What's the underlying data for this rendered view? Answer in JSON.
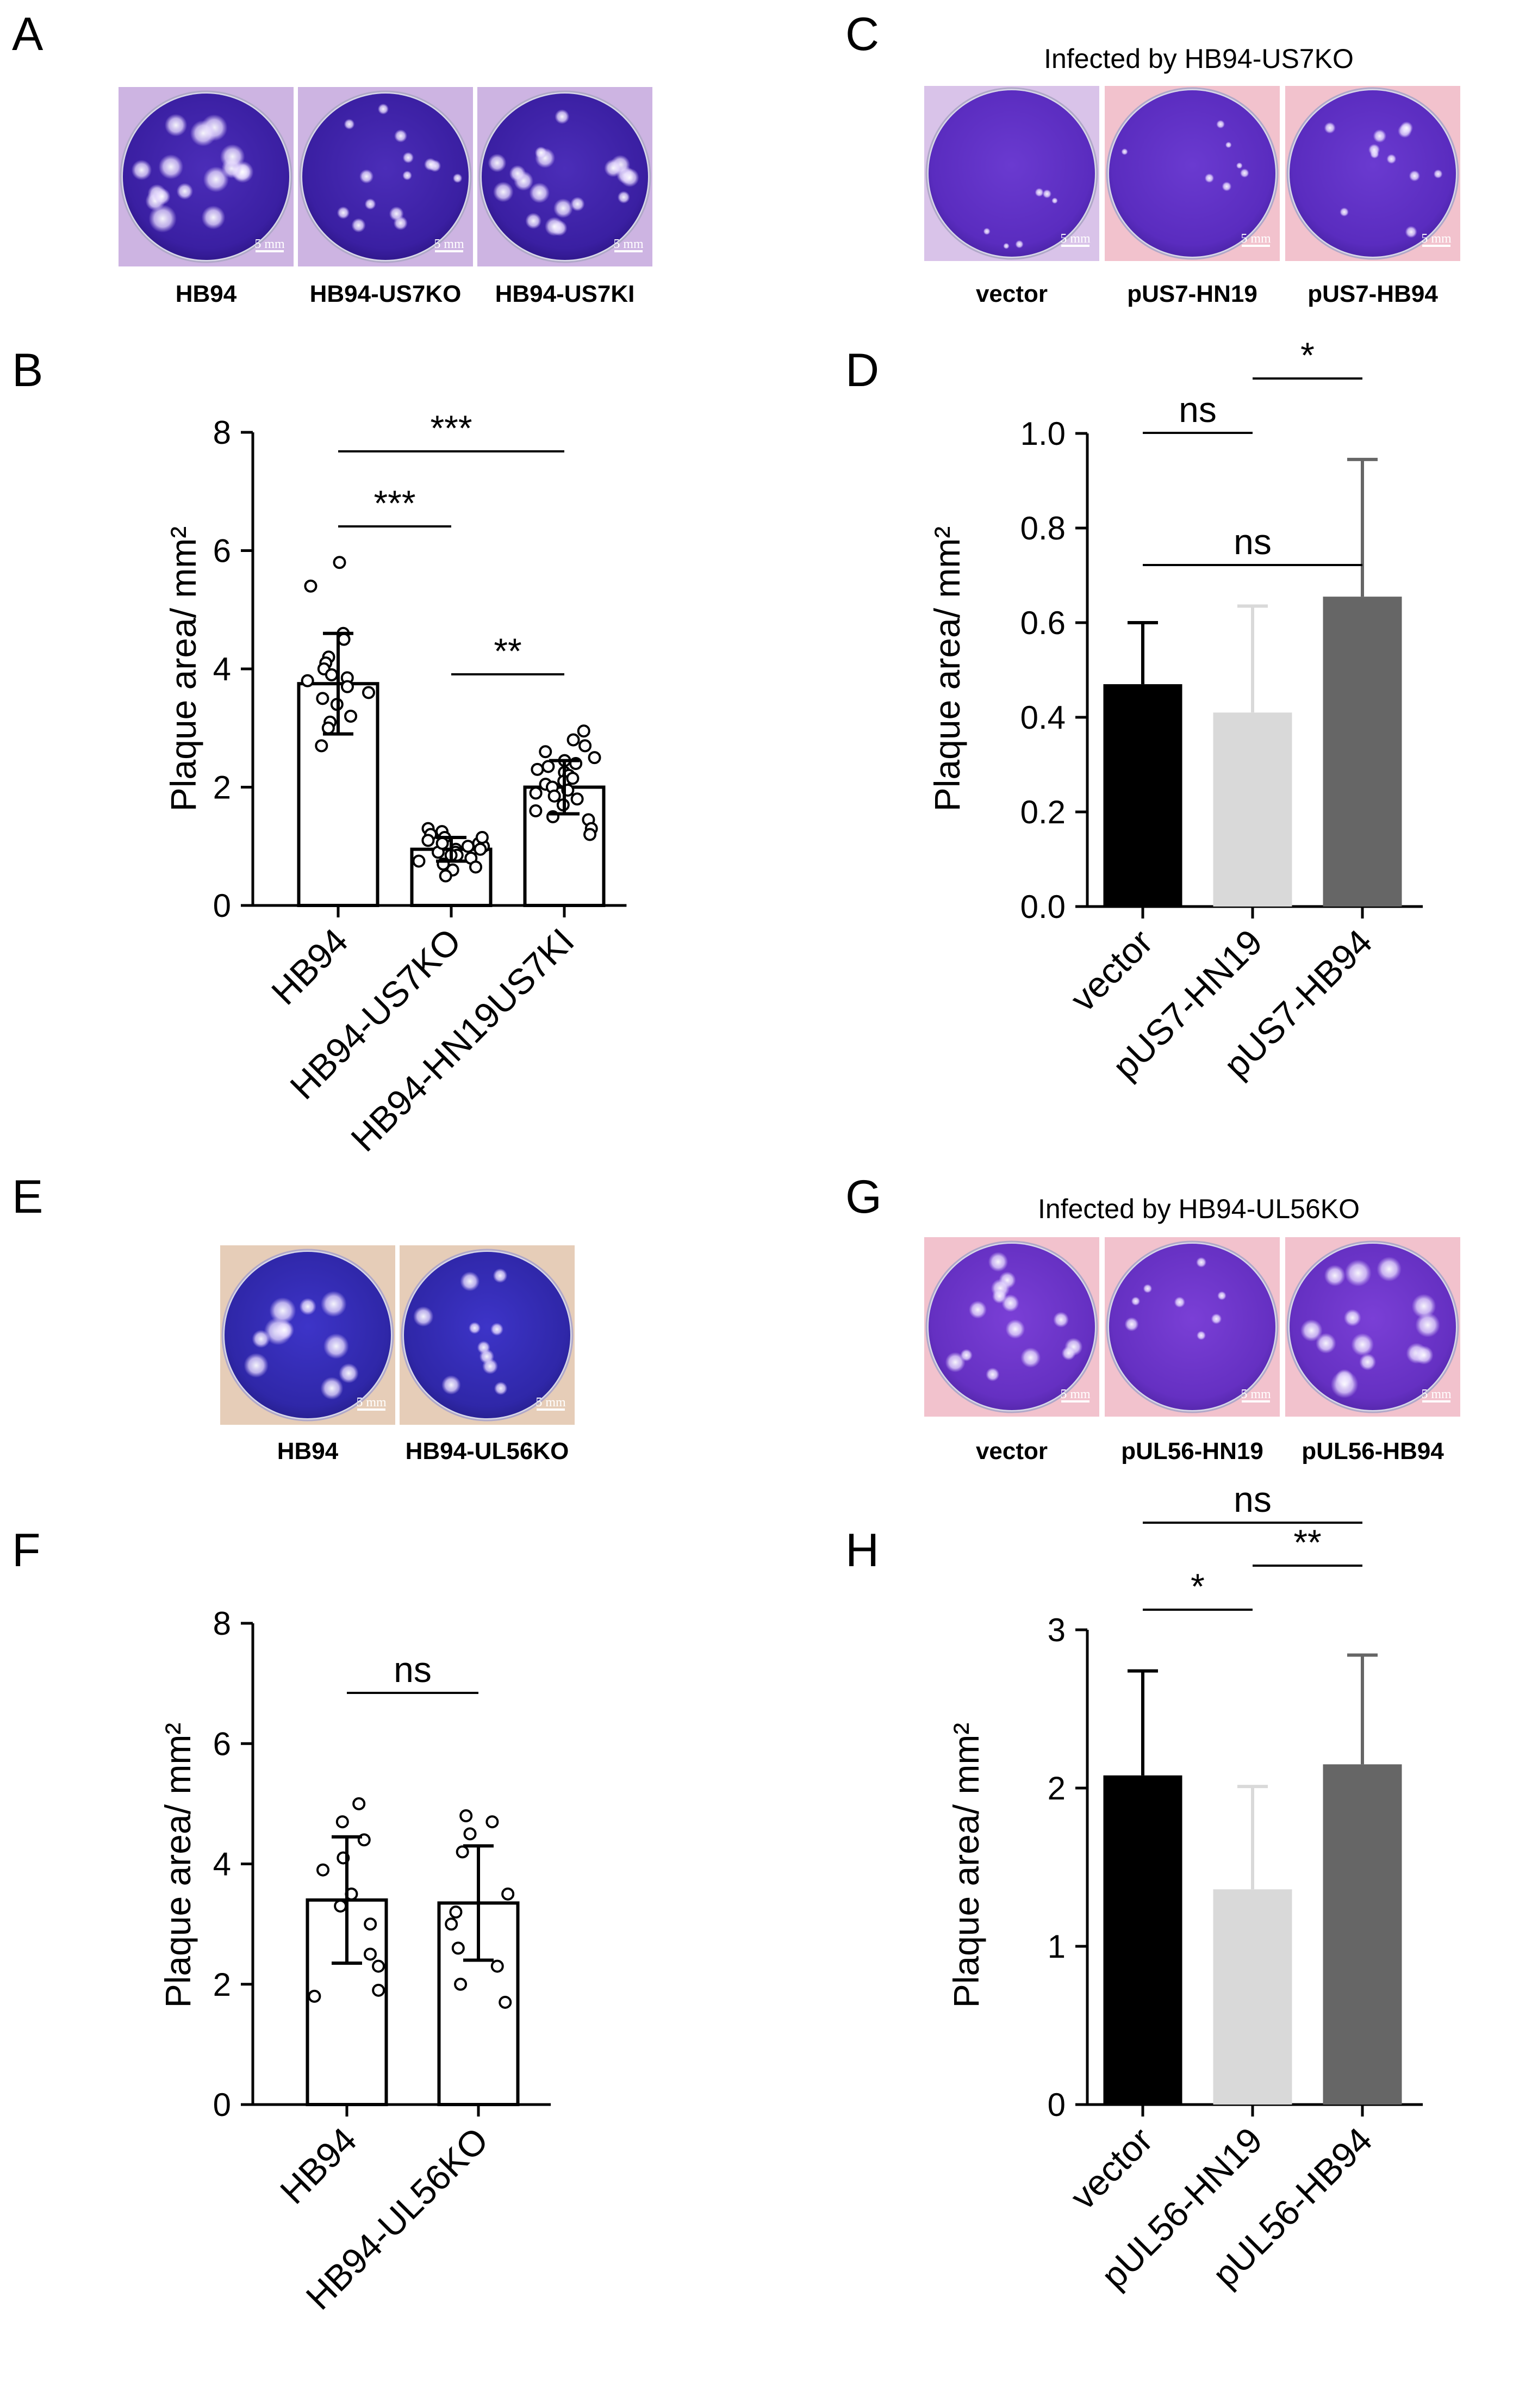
{
  "panels": {
    "A": {
      "letter": "A",
      "header": "",
      "scale_label": "5 mm",
      "dishes": [
        {
          "caption": "HB94",
          "plaque_count": 16,
          "plaque_size": "large",
          "bg": "#cdb4e2"
        },
        {
          "caption": "HB94-US7KO",
          "plaque_count": 14,
          "plaque_size": "small",
          "bg": "#cdb4e2"
        },
        {
          "caption": "HB94-US7KI",
          "plaque_count": 18,
          "plaque_size": "medium",
          "bg": "#cdb4e2"
        }
      ]
    },
    "C": {
      "letter": "C",
      "header": "Infected by HB94-US7KO",
      "scale_label": "5 mm",
      "dishes": [
        {
          "caption": "vector",
          "plaque_count": 6,
          "plaque_size": "tiny",
          "bg": "#d9c3e9"
        },
        {
          "caption": "pUS7-HN19",
          "plaque_count": 7,
          "plaque_size": "tiny",
          "bg": "#f2c2cd"
        },
        {
          "caption": "pUS7-HB94",
          "plaque_count": 11,
          "plaque_size": "small",
          "bg": "#f2c2cd"
        }
      ]
    },
    "E": {
      "letter": "E",
      "header": "",
      "scale_label": "5 mm",
      "dishes": [
        {
          "caption": "HB94",
          "plaque_count": 10,
          "plaque_size": "large",
          "bg": "#e6cdb8"
        },
        {
          "caption": "HB94-UL56KO",
          "plaque_count": 10,
          "plaque_size": "medium",
          "bg": "#e6cdb8"
        }
      ]
    },
    "G": {
      "letter": "G",
      "header": "Infected by HB94-UL56KO",
      "scale_label": "5 mm",
      "dishes": [
        {
          "caption": "vector",
          "plaque_count": 14,
          "plaque_size": "medium",
          "bg": "#f2c2cd"
        },
        {
          "caption": "pUL56-HN19",
          "plaque_count": 8,
          "plaque_size": "small",
          "bg": "#f2c2cd"
        },
        {
          "caption": "pUL56-HB94",
          "plaque_count": 14,
          "plaque_size": "large",
          "bg": "#f2c2cd"
        }
      ]
    }
  },
  "chart_data": [
    {
      "panel": "B",
      "type": "bar",
      "style": "scatter-bar",
      "ylabel": "Plaque area/ mm²",
      "ylim": [
        0,
        8
      ],
      "yticks": [
        "0",
        "2",
        "4",
        "6",
        "8"
      ],
      "categories": [
        "HB94",
        "HB94-US7KO",
        "HB94-HN19US7KI"
      ],
      "values": [
        3.75,
        0.95,
        2.0
      ],
      "errors": [
        0.85,
        0.2,
        0.45
      ],
      "points": [
        [
          5.8,
          5.4,
          4.6,
          4.5,
          4.2,
          4.1,
          4.0,
          3.9,
          3.85,
          3.8,
          3.7,
          3.6,
          3.5,
          3.4,
          3.2,
          3.1,
          3.0,
          2.7
        ],
        [
          1.3,
          1.25,
          1.2,
          1.15,
          1.1,
          1.05,
          1.0,
          1.0,
          0.95,
          0.9,
          0.9,
          0.85,
          0.8,
          0.75,
          0.7,
          0.65,
          0.6,
          1.05,
          0.95,
          0.85,
          1.15,
          0.5
        ],
        [
          2.95,
          2.8,
          2.7,
          2.6,
          2.5,
          2.45,
          2.4,
          2.3,
          2.25,
          2.2,
          2.1,
          2.05,
          2.0,
          1.95,
          1.9,
          1.85,
          1.8,
          1.7,
          1.6,
          1.5,
          1.45,
          1.3,
          1.2,
          2.15,
          2.35
        ]
      ],
      "brackets": [
        {
          "from": 0,
          "to": 2,
          "label": "***"
        },
        {
          "from": 0,
          "to": 1,
          "label": "***"
        },
        {
          "from": 1,
          "to": 2,
          "label": "**"
        }
      ]
    },
    {
      "panel": "D",
      "type": "bar",
      "style": "solid-bar",
      "ylabel": "Plaque area/ mm²",
      "ylim": [
        0,
        1.0
      ],
      "yticks": [
        "0.0",
        "0.2",
        "0.4",
        "0.6",
        "0.8",
        "1.0"
      ],
      "categories": [
        "vector",
        "pUS7-HN19",
        "pUS7-HB94"
      ],
      "values": [
        0.47,
        0.41,
        0.655
      ],
      "errors": [
        0.13,
        0.225,
        0.29
      ],
      "colors": [
        "#000000",
        "#d9d9d9",
        "#666666"
      ],
      "brackets": [
        {
          "from": 1,
          "to": 2,
          "label": "*"
        },
        {
          "from": 0,
          "to": 1,
          "label": "ns"
        },
        {
          "from": 0,
          "to": 2,
          "label": "ns"
        }
      ]
    },
    {
      "panel": "F",
      "type": "bar",
      "style": "scatter-bar",
      "ylabel": "Plaque area/ mm²",
      "ylim": [
        0,
        8
      ],
      "yticks": [
        "0",
        "2",
        "4",
        "6",
        "8"
      ],
      "categories": [
        "HB94",
        "HB94-UL56KO"
      ],
      "values": [
        3.4,
        3.35
      ],
      "errors": [
        1.05,
        0.95
      ],
      "points": [
        [
          5.0,
          4.7,
          4.4,
          4.1,
          3.9,
          3.5,
          3.3,
          3.0,
          2.5,
          2.3,
          1.9,
          1.8
        ],
        [
          4.8,
          4.7,
          4.5,
          4.2,
          3.5,
          3.2,
          3.0,
          2.6,
          2.3,
          2.0,
          1.7
        ]
      ],
      "brackets": [
        {
          "from": 0,
          "to": 1,
          "label": "ns"
        }
      ]
    },
    {
      "panel": "H",
      "type": "bar",
      "style": "solid-bar",
      "ylabel": "Plaque area/ mm²",
      "ylim": [
        0,
        3
      ],
      "yticks": [
        "0",
        "1",
        "2",
        "3"
      ],
      "categories": [
        "vector",
        "pUL56-HN19",
        "pUL56-HB94"
      ],
      "values": [
        2.08,
        1.36,
        2.15
      ],
      "errors": [
        0.66,
        0.65,
        0.69
      ],
      "colors": [
        "#000000",
        "#d9d9d9",
        "#666666"
      ],
      "brackets": [
        {
          "from": 0,
          "to": 1,
          "label": "*"
        },
        {
          "from": 1,
          "to": 2,
          "label": "**"
        },
        {
          "from": 0,
          "to": 2,
          "label": "ns"
        }
      ]
    }
  ]
}
